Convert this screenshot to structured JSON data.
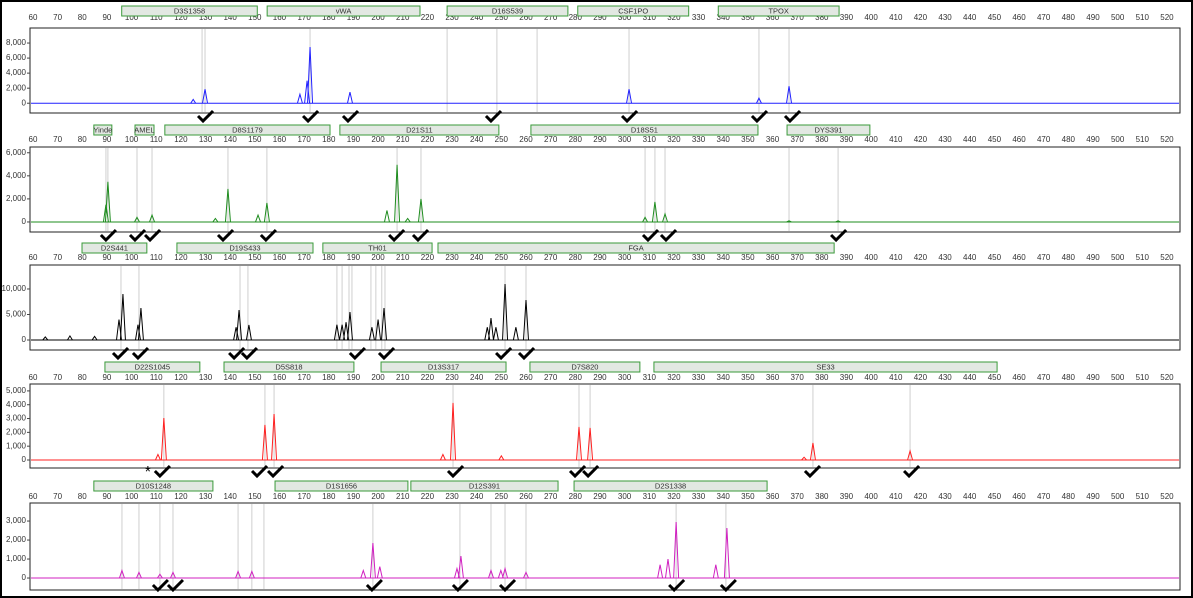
{
  "chart_data": [
    {
      "type": "electropherogram",
      "color": "#2020ff",
      "xlim": [
        58.8,
        525.3
      ],
      "xticks": [
        60,
        70,
        80,
        90,
        100,
        110,
        120,
        130,
        140,
        150,
        160,
        170,
        180,
        190,
        200,
        210,
        220,
        230,
        240,
        250,
        260,
        270,
        280,
        290,
        300,
        310,
        320,
        330,
        340,
        350,
        360,
        370,
        380,
        390,
        400,
        410,
        420,
        430,
        440,
        450,
        460,
        470,
        480,
        490,
        500,
        510,
        520
      ],
      "ylim": [
        -1300,
        10000
      ],
      "yticks": [
        0,
        {
          "value": 2000,
          "label": "2,000"
        },
        {
          "value": 4000,
          "label": "4,000"
        },
        {
          "value": 6000,
          "label": "6,000"
        },
        {
          "value": 8000,
          "label": "8,000"
        }
      ],
      "markers": [
        {
          "label": "D3S1358",
          "start": 96,
          "end": 151
        },
        {
          "label": "vWA",
          "start": 155,
          "end": 217
        },
        {
          "label": "D16S539",
          "start": 228,
          "end": 277
        },
        {
          "label": "CSF1PO",
          "start": 281,
          "end": 326
        },
        {
          "label": "TPOX",
          "start": 338,
          "end": 387
        }
      ],
      "peaks": {
        "x": [
          125,
          129.8,
          168.3,
          171.2,
          172.4,
          188.6,
          301.8,
          354.5,
          366.7
        ],
        "values": [
          500,
          1870,
          1200,
          3000,
          7470,
          1470,
          1870,
          670,
          2270
        ]
      },
      "bin_lines": [
        128.6,
        129.8,
        172.4,
        228,
        248.2,
        264.5,
        301.8,
        354.5,
        366.7
      ],
      "calls": [
        129.8,
        172.4,
        188.6,
        246.6,
        301.8,
        354.5,
        367.9
      ]
    },
    {
      "type": "electropherogram",
      "color": "#1e8c1e",
      "xlim": [
        58.8,
        525.3
      ],
      "xticks": [
        60,
        70,
        80,
        90,
        100,
        110,
        120,
        130,
        140,
        150,
        160,
        170,
        180,
        190,
        200,
        210,
        220,
        230,
        240,
        250,
        260,
        270,
        280,
        290,
        300,
        310,
        320,
        330,
        340,
        350,
        360,
        370,
        380,
        390,
        400,
        410,
        420,
        430,
        440,
        450,
        460,
        470,
        480,
        490,
        500,
        510,
        520
      ],
      "ylim": [
        -870,
        6500
      ],
      "yticks": [
        0,
        {
          "value": 2000,
          "label": "2,000"
        },
        {
          "value": 4000,
          "label": "4,000"
        },
        {
          "value": 6000,
          "label": "6,000"
        }
      ],
      "markers": [
        {
          "label": "Yinde",
          "start": 84.7,
          "end": 92
        },
        {
          "label": "AMEL",
          "start": 101.4,
          "end": 109.1
        },
        {
          "label": "D8S1179",
          "start": 113.5,
          "end": 180.5
        },
        {
          "label": "D21S11",
          "start": 184.5,
          "end": 249
        },
        {
          "label": "D18S51",
          "start": 262,
          "end": 354.1
        },
        {
          "label": "DYS391",
          "start": 365.9,
          "end": 399.5
        }
      ],
      "peaks": {
        "x": [
          89.6,
          90.4,
          102.2,
          108.3,
          134,
          139.1,
          151.3,
          154.9,
          203.6,
          207.7,
          212,
          217.4,
          308.3,
          312.3,
          316.4,
          366.7,
          386.6
        ],
        "values": [
          1500,
          3480,
          400,
          600,
          300,
          2870,
          600,
          1650,
          1000,
          4960,
          300,
          2000,
          400,
          1740,
          700,
          100,
          100
        ]
      },
      "bin_lines": [
        89.6,
        90.4,
        102.2,
        108.3,
        139.1,
        154.9,
        207.7,
        217.4,
        308.3,
        312.3,
        316.4,
        366.7,
        386.6
      ],
      "calls": [
        90.4,
        102.2,
        108.3,
        137.9,
        155.3,
        207.3,
        217,
        310.3,
        317.6,
        386.6
      ]
    },
    {
      "type": "electropherogram",
      "color": "#000000",
      "xlim": [
        58.8,
        525.3
      ],
      "xticks": [
        60,
        70,
        80,
        90,
        100,
        110,
        120,
        130,
        140,
        150,
        160,
        170,
        180,
        190,
        200,
        210,
        220,
        230,
        240,
        250,
        260,
        270,
        280,
        290,
        300,
        310,
        320,
        330,
        340,
        350,
        360,
        370,
        380,
        390,
        400,
        410,
        420,
        430,
        440,
        450,
        460,
        470,
        480,
        490,
        500,
        510,
        520
      ],
      "ylim": [
        -1960,
        14700
      ],
      "yticks": [
        0,
        {
          "value": 5000,
          "label": "5,000"
        },
        {
          "value": 10000,
          "label": "10,000"
        }
      ],
      "markers": [
        {
          "label": "D2S441",
          "start": 79.9,
          "end": 106.2
        },
        {
          "label": "D19S433",
          "start": 118.4,
          "end": 173.6
        },
        {
          "label": "TH01",
          "start": 177.6,
          "end": 221.9
        },
        {
          "label": "FGA",
          "start": 224.3,
          "end": 385
        }
      ],
      "peaks": {
        "x": [
          65,
          75,
          85,
          94.9,
          96.5,
          102.6,
          103.8,
          142.4,
          143.6,
          147.6,
          183.3,
          185.4,
          187,
          188.6,
          197.5,
          200,
          202.4,
          244.3,
          245.8,
          247.8,
          251.5,
          255.9,
          260
        ],
        "values": [
          600,
          800,
          700,
          4000,
          9000,
          3000,
          6270,
          2500,
          5880,
          2940,
          3000,
          3000,
          3500,
          5490,
          2500,
          4000,
          6270,
          2500,
          4310,
          2500,
          10980,
          2500,
          7840
        ]
      },
      "bin_lines": [
        95.7,
        103,
        144,
        147.2,
        183.3,
        185.4,
        188.2,
        189.4,
        197.1,
        199.1,
        201.5,
        202.8,
        251.5,
        260
      ],
      "calls": [
        95.3,
        103.4,
        142.4,
        147.6,
        191.4,
        203.2,
        250.7,
        260
      ]
    },
    {
      "type": "electropherogram",
      "color": "#ff2020",
      "xlim": [
        58.8,
        525.3
      ],
      "xticks": [
        60,
        70,
        80,
        90,
        100,
        110,
        120,
        130,
        140,
        150,
        160,
        170,
        180,
        190,
        200,
        210,
        220,
        230,
        240,
        250,
        260,
        270,
        280,
        290,
        300,
        310,
        320,
        330,
        340,
        350,
        360,
        370,
        380,
        390,
        400,
        410,
        420,
        430,
        440,
        450,
        460,
        470,
        480,
        490,
        500,
        510,
        520
      ],
      "ylim": [
        -580,
        5500
      ],
      "yticks": [
        0,
        {
          "value": 1000,
          "label": "1,000"
        },
        {
          "value": 2000,
          "label": "2,000"
        },
        {
          "value": 3000,
          "label": "3,000"
        },
        {
          "value": 4000,
          "label": "4,000"
        },
        {
          "value": 5000,
          "label": "5,000"
        }
      ],
      "markers": [
        {
          "label": "D22S1045",
          "start": 89.2,
          "end": 127.7
        },
        {
          "label": "D5S818",
          "start": 137.5,
          "end": 190.2
        },
        {
          "label": "D13S317",
          "start": 201.2,
          "end": 251.9
        },
        {
          "label": "D7S820",
          "start": 261.6,
          "end": 306.2
        },
        {
          "label": "SE33",
          "start": 311.9,
          "end": 451.1
        }
      ],
      "peaks": {
        "x": [
          110.7,
          113.1,
          154.1,
          157.8,
          226.3,
          230.4,
          250,
          281.5,
          286,
          372.8,
          376.4,
          415.8
        ],
        "values": [
          400,
          3040,
          2540,
          3330,
          400,
          4130,
          300,
          2390,
          2320,
          200,
          1230,
          650
        ]
      },
      "bin_lines": [
        113.1,
        154.1,
        157.8,
        230.4,
        281.5,
        286,
        376.4,
        415.8
      ],
      "calls": [
        112.3,
        151.7,
        158.2,
        231.2,
        280.7,
        286,
        376,
        416.2
      ],
      "annotation": "*"
    },
    {
      "type": "electropherogram",
      "color": "#d020c0",
      "xlim": [
        58.8,
        525.3
      ],
      "xticks": [
        60,
        70,
        80,
        90,
        100,
        110,
        120,
        130,
        140,
        150,
        160,
        170,
        180,
        190,
        200,
        210,
        220,
        230,
        240,
        250,
        260,
        270,
        280,
        290,
        300,
        310,
        320,
        330,
        340,
        350,
        360,
        370,
        380,
        390,
        400,
        410,
        420,
        430,
        440,
        450,
        460,
        470,
        480,
        490,
        500,
        510,
        520
      ],
      "ylim": [
        -630,
        3950
      ],
      "yticks": [
        0,
        {
          "value": 1000,
          "label": "1,000"
        },
        {
          "value": 2000,
          "label": "2,000"
        },
        {
          "value": 3000,
          "label": "3,000"
        }
      ],
      "markers": [
        {
          "label": "D10S1248",
          "start": 84.7,
          "end": 133
        },
        {
          "label": "D1S1656",
          "start": 158.2,
          "end": 212.1
        },
        {
          "label": "D12S391",
          "start": 213.3,
          "end": 273
        },
        {
          "label": "D2S1338",
          "start": 279.5,
          "end": 357.8
        }
      ],
      "peaks": {
        "x": [
          96.1,
          103,
          111.5,
          116.8,
          143.2,
          148.8,
          194,
          197.9,
          200.7,
          232,
          233.6,
          245.8,
          249.8,
          251.5,
          260,
          314.4,
          317.6,
          320.9,
          337,
          341.5
        ],
        "values": [
          400,
          300,
          200,
          300,
          350,
          350,
          400,
          1840,
          600,
          500,
          1160,
          400,
          400,
          500,
          300,
          700,
          1000,
          2950,
          700,
          2630
        ]
      },
      "bin_lines": [
        96.1,
        103,
        111.5,
        116.8,
        143.2,
        148.8,
        153.7,
        197.9,
        233.2,
        245.8,
        251.5,
        260,
        320.9,
        341.1
      ],
      "calls": [
        111.5,
        117.6,
        198.3,
        233.2,
        252.3,
        320.9,
        341.9
      ]
    }
  ]
}
